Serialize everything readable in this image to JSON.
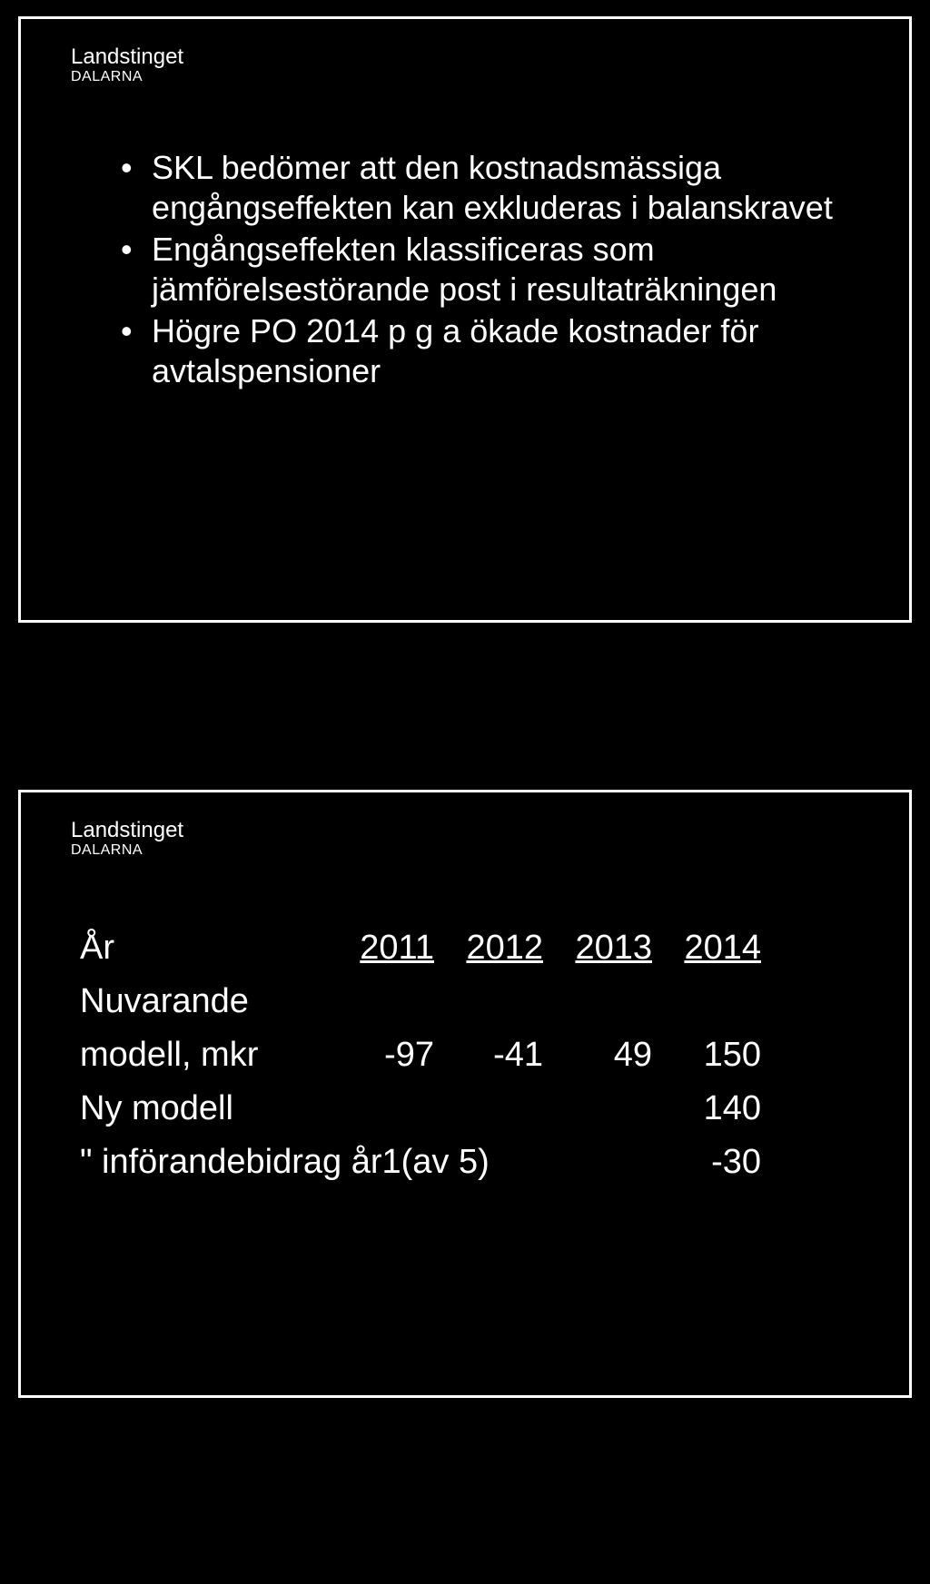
{
  "logo": {
    "line1": "Landstinget",
    "line2": "DALARNA"
  },
  "top_panel": {
    "bullets": [
      "SKL bedömer att den kostnads­mässiga engångseffekten kan exkluderas i balanskravet",
      "Engångseffekten klassificeras som jämförelsestörande post i resultaträkningen",
      "Högre PO 2014 p g a ökade kostnader för avtalspensioner"
    ]
  },
  "bottom_panel": {
    "table": {
      "header_label": "År",
      "years": [
        "2011",
        "2012",
        "2013",
        "2014"
      ],
      "rows": [
        {
          "label_line1": "Nuvarande",
          "label_line2": "modell, mkr",
          "values": [
            "-97",
            "-41",
            "49",
            "150"
          ]
        },
        {
          "label_line1": "Ny modell",
          "values": [
            "",
            "",
            "",
            "140"
          ]
        },
        {
          "label_line1": "\" införandebidrag år1(av 5)",
          "values": [
            "",
            "",
            "",
            "-30"
          ]
        }
      ]
    }
  }
}
